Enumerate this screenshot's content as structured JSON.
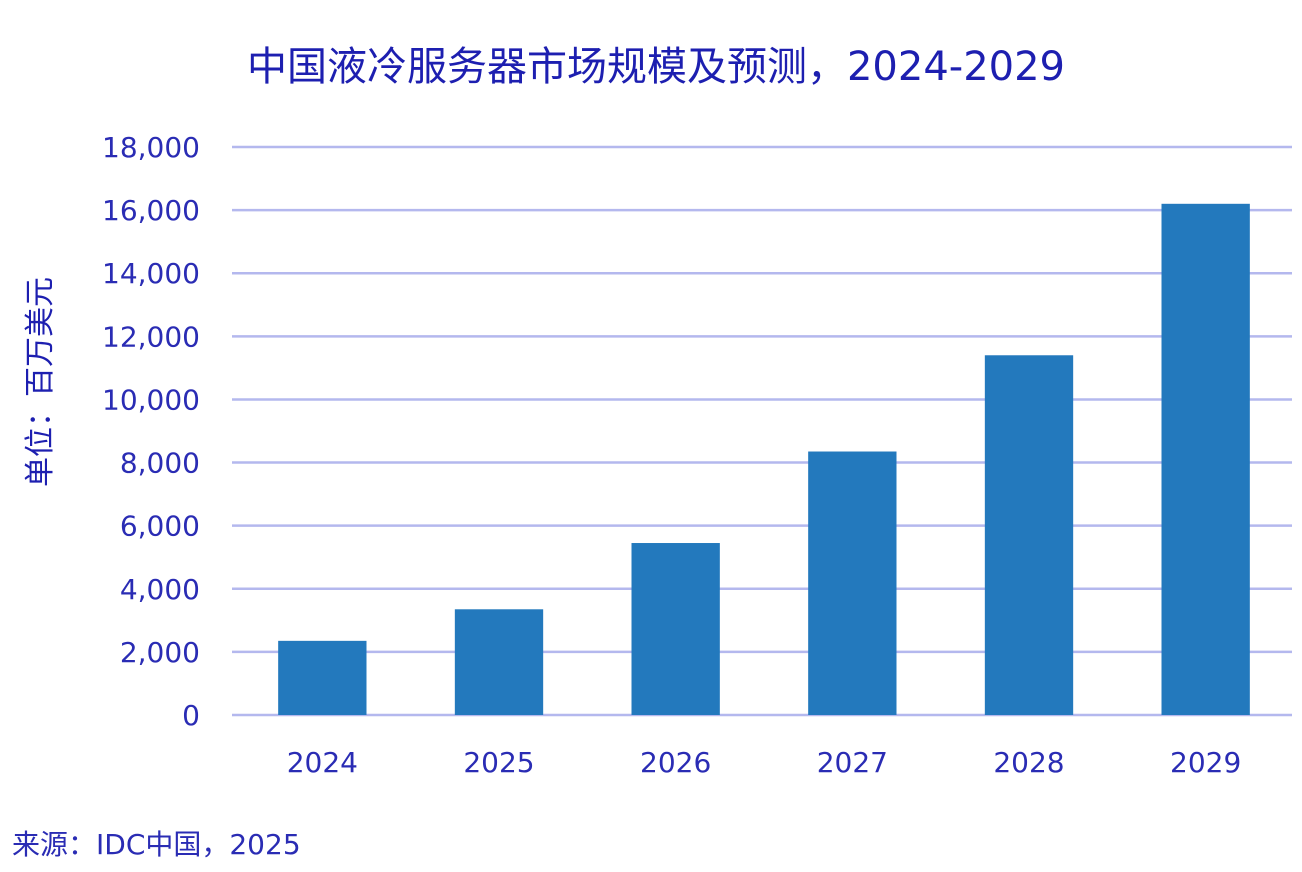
{
  "chart_data": {
    "type": "bar",
    "title": "中国液冷服务器市场规模及预测，2024-2029",
    "ylabel": "单位：百万美元",
    "xlabel": "",
    "categories": [
      "2024",
      "2025",
      "2026",
      "2027",
      "2028",
      "2029"
    ],
    "values": [
      2350,
      3350,
      5450,
      8350,
      11400,
      16200
    ],
    "ylim": [
      0,
      18000
    ],
    "yticks": [
      "0",
      "2,000",
      "4,000",
      "6,000",
      "8,000",
      "10,000",
      "12,000",
      "14,000",
      "16,000",
      "18,000"
    ],
    "grid": true,
    "bar_color": "#2379bd",
    "grid_color": "#b4b8ee",
    "text_color": "#1d1fb0",
    "source": "来源：IDC中国，2025"
  }
}
